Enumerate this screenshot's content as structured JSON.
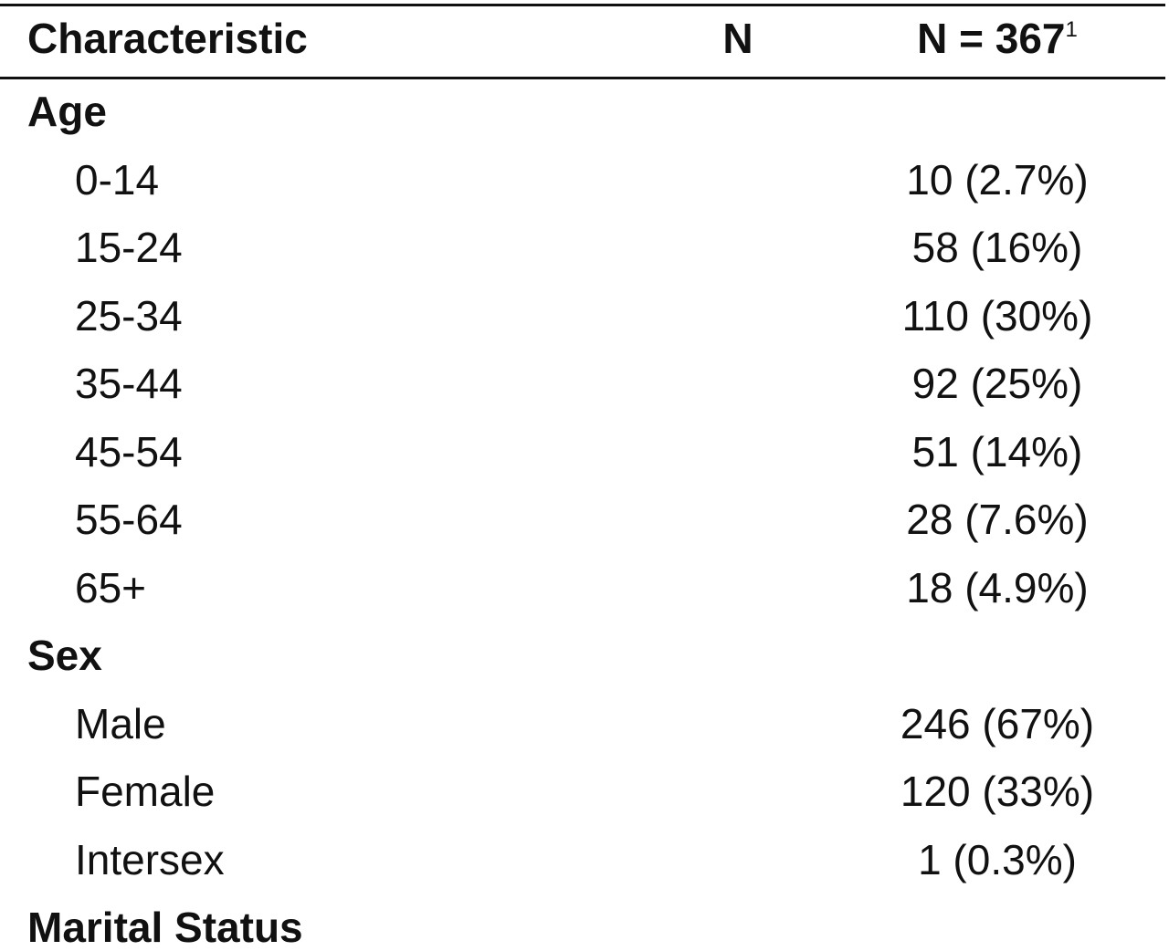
{
  "table": {
    "header": {
      "characteristic": "Characteristic",
      "n": "N",
      "total": "N = 367",
      "footnote_marker": "1"
    },
    "groups": [
      {
        "label": "Age",
        "rows": [
          [
            "0-14",
            "10 (2.7%)"
          ],
          [
            "15-24",
            "58 (16%)"
          ],
          [
            "25-34",
            "110 (30%)"
          ],
          [
            "35-44",
            "92 (25%)"
          ],
          [
            "45-54",
            "51 (14%)"
          ],
          [
            "55-64",
            "28 (7.6%)"
          ],
          [
            "65+",
            "18 (4.9%)"
          ]
        ]
      },
      {
        "label": "Sex",
        "rows": [
          [
            "Male",
            "246 (67%)"
          ],
          [
            "Female",
            "120 (33%)"
          ],
          [
            "Intersex",
            "1 (0.3%)"
          ]
        ]
      },
      {
        "label": "Marital Status",
        "rows": []
      }
    ]
  }
}
